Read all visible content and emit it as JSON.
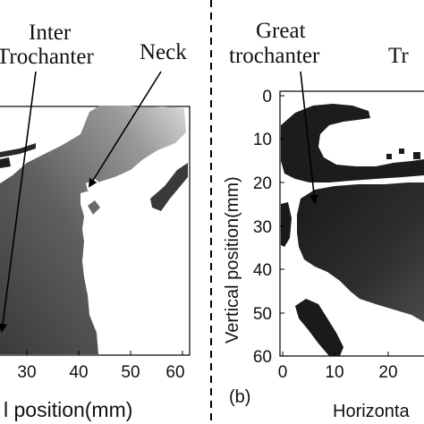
{
  "figure": {
    "left_panel": {
      "annotations": [
        "Inter",
        "Trochanter",
        "Neck"
      ],
      "x_ticks": [
        "30",
        "40",
        "50",
        "60"
      ],
      "xlabel": "l position(mm)"
    },
    "right_panel": {
      "annotations": [
        "Great",
        "trochanter",
        "Tr"
      ],
      "y_ticks": [
        "0",
        "10",
        "20",
        "30",
        "40",
        "50",
        "60"
      ],
      "x_ticks": [
        "0",
        "10",
        "20"
      ],
      "ylabel": "Vertical position(mm)",
      "xlabel": "Horizonta",
      "panel_label": "(b)"
    }
  }
}
